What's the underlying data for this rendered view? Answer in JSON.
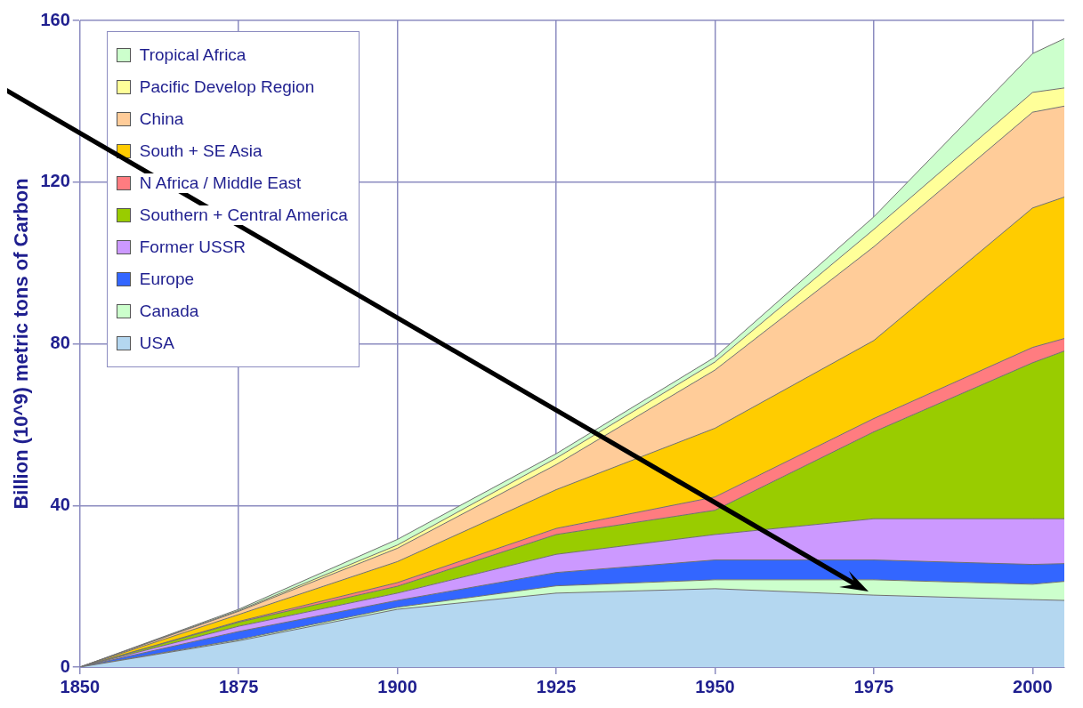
{
  "chart_data": {
    "type": "area",
    "ylabel": "Billion (10^9) metric tons of Carbon",
    "stacked": true,
    "legend": "top left",
    "grid": true,
    "marker": "none",
    "x": [
      1850,
      1875,
      1900,
      1925,
      1950,
      1975,
      2000,
      2005
    ],
    "xlim": [
      1850,
      2005
    ],
    "xticks": [
      1850,
      1875,
      1900,
      1925,
      1950,
      1975,
      2000
    ],
    "ylim": [
      0,
      160
    ],
    "yticks": [
      0,
      40,
      80,
      120,
      160
    ],
    "series": [
      {
        "name": "USA",
        "color": "#b4d7f0",
        "values": [
          0,
          6.5,
          14.3,
          18.3,
          19.4,
          17.8,
          16.7,
          16.5
        ]
      },
      {
        "name": "Canada",
        "color": "#ccffcc",
        "values": [
          0,
          0.3,
          0.5,
          1.8,
          2.2,
          3.8,
          3.8,
          4.7
        ]
      },
      {
        "name": "Europe",
        "color": "#3366ff",
        "values": [
          0,
          2.0,
          1.7,
          3.3,
          4.9,
          4.9,
          4.9,
          4.4
        ]
      },
      {
        "name": "Former USSR",
        "color": "#cc99ff",
        "values": [
          0,
          1.3,
          1.8,
          4.5,
          6.3,
          10.2,
          11.3,
          11.1
        ]
      },
      {
        "name": "Southern + Central America",
        "color": "#99cc00",
        "values": [
          0,
          1.0,
          1.7,
          4.9,
          6.0,
          21.5,
          38.6,
          41.5
        ]
      },
      {
        "name": "N Africa / Middle East",
        "color": "#ff7c80",
        "values": [
          0,
          0.2,
          0.9,
          1.5,
          3.3,
          3.3,
          3.8,
          3.1
        ]
      },
      {
        "name": "South + SE Asia",
        "color": "#ffcc00",
        "values": [
          0,
          1.7,
          5.2,
          9.6,
          17.0,
          19.3,
          34.5,
          35.0
        ]
      },
      {
        "name": "China",
        "color": "#ffcc99",
        "values": [
          0,
          0.8,
          3.3,
          6.2,
          14.4,
          23.2,
          23.7,
          22.5
        ]
      },
      {
        "name": "Pacific Develop Region",
        "color": "#ffff99",
        "values": [
          0,
          0.2,
          0.8,
          1.6,
          2.0,
          4.3,
          4.9,
          4.5
        ]
      },
      {
        "name": "Tropical Africa",
        "color": "#ccffcc",
        "values": [
          0,
          0.3,
          1.4,
          1.1,
          1.2,
          3.1,
          9.6,
          12.2
        ]
      }
    ]
  }
}
